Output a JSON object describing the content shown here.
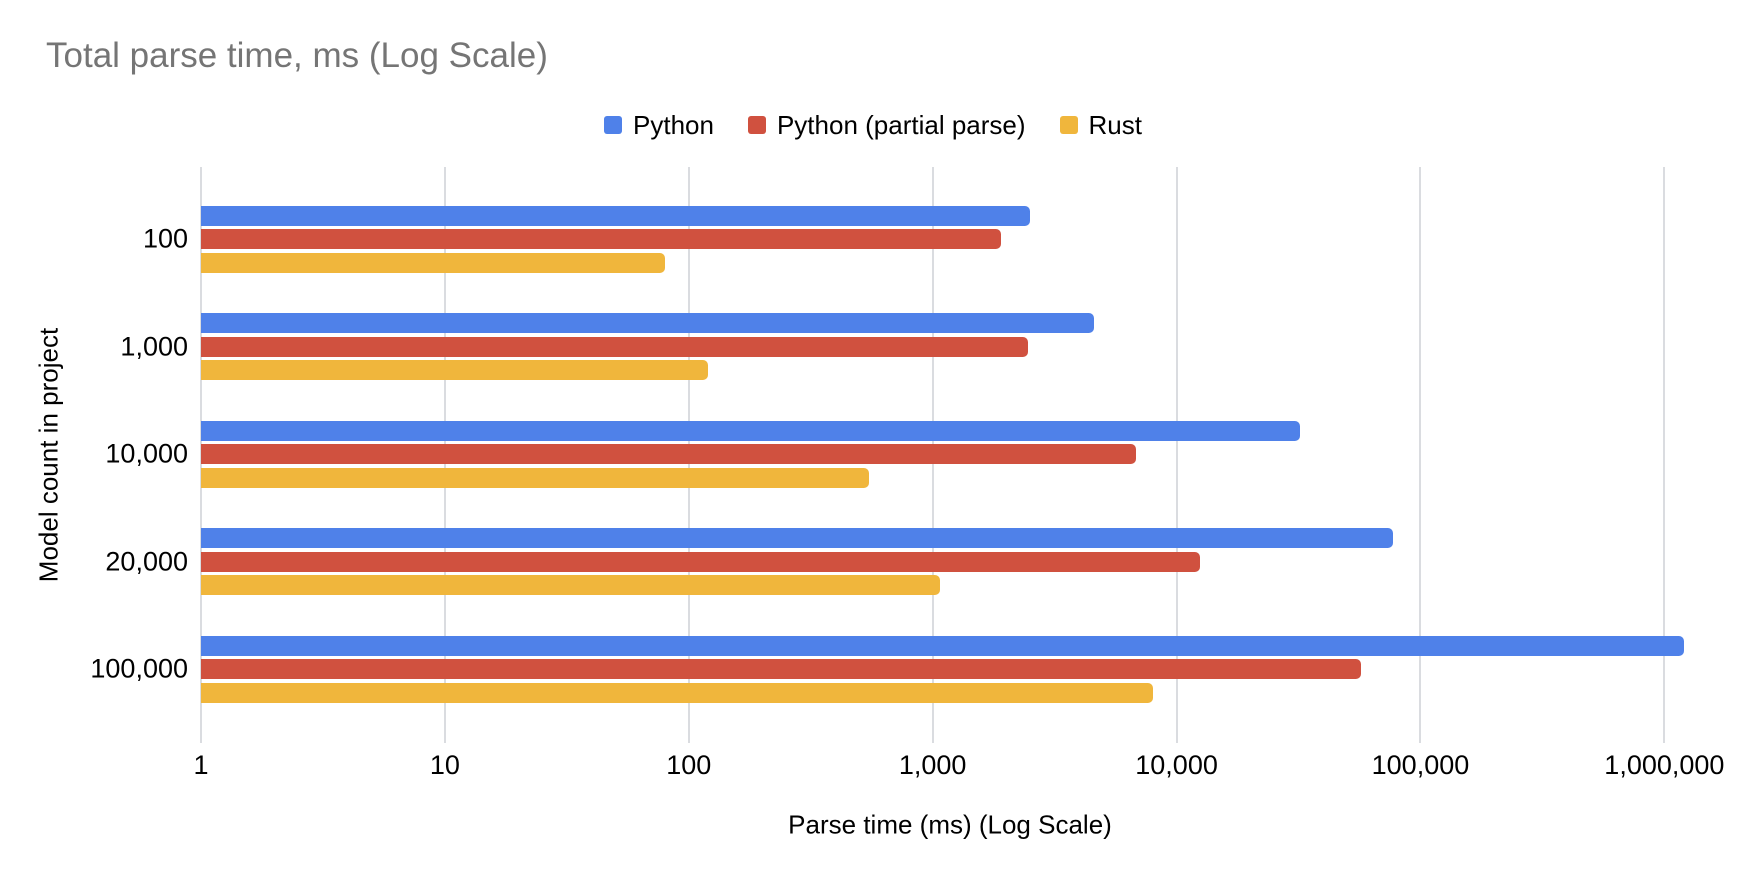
{
  "title": "Total parse time, ms (Log Scale)",
  "colors": {
    "python": "#4f81e9",
    "python_partial": "#d0513f",
    "rust": "#f0b63c",
    "title_text": "#757575",
    "gridline": "#dadce0",
    "label_text": "#000000"
  },
  "legend": {
    "position": "top",
    "items": [
      {
        "label": "Python",
        "color": "#4f81e9"
      },
      {
        "label": "Python (partial parse)",
        "color": "#d0513f"
      },
      {
        "label": "Rust",
        "color": "#f0b63c"
      }
    ]
  },
  "chart_data": {
    "type": "bar",
    "orientation": "horizontal",
    "title": "Total parse time, ms (Log Scale)",
    "xlabel": "Parse time (ms) (Log Scale)",
    "ylabel": "Model count in project",
    "x_scale": "log10",
    "grid": true,
    "legend_position": "top",
    "categories": [
      "100",
      "1,000",
      "10,000",
      "20,000",
      "100,000"
    ],
    "series": [
      {
        "name": "Python",
        "color": "#4f81e9",
        "values": [
          2500,
          4600,
          32000,
          77000,
          1200000
        ]
      },
      {
        "name": "Python (partial parse)",
        "color": "#d0513f",
        "values": [
          1900,
          2450,
          6800,
          12500,
          57000
        ]
      },
      {
        "name": "Rust",
        "color": "#f0b63c",
        "values": [
          80,
          120,
          550,
          1070,
          8000
        ]
      }
    ],
    "x_ticks": [
      {
        "label": "1",
        "value": 1
      },
      {
        "label": "10",
        "value": 10
      },
      {
        "label": "100",
        "value": 100
      },
      {
        "label": "1,000",
        "value": 1000
      },
      {
        "label": "10,000",
        "value": 10000
      },
      {
        "label": "100,000",
        "value": 100000
      },
      {
        "label": "1,000,000",
        "value": 1000000
      }
    ],
    "xlim": [
      1,
      1400000
    ]
  }
}
